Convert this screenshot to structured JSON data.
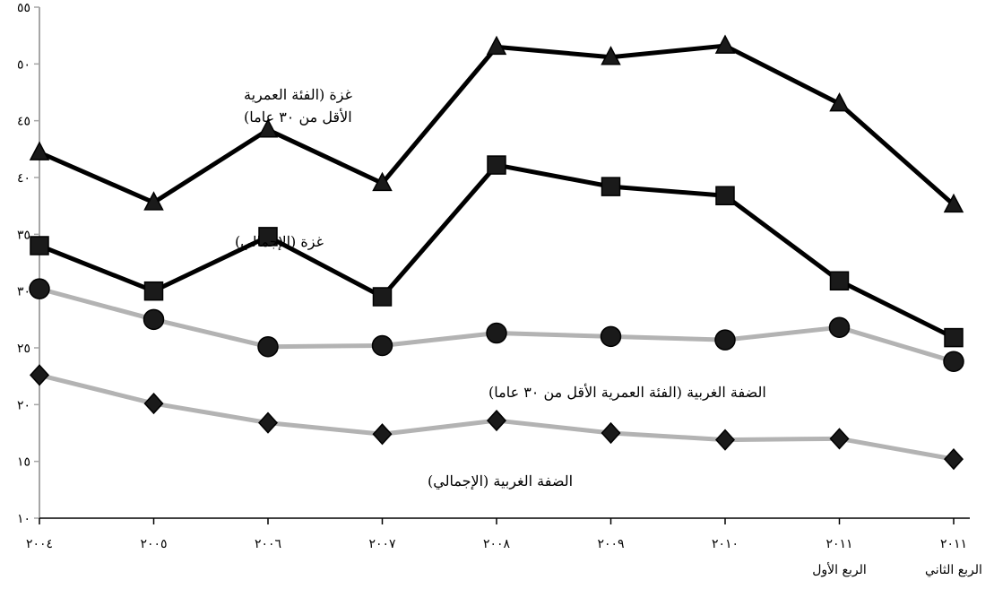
{
  "chart_data": {
    "type": "line",
    "categories": [
      "٢٠٠٤",
      "٢٠٠٥",
      "٢٠٠٦",
      "٢٠٠٧",
      "٢٠٠٨",
      "٢٠٠٩",
      "٢٠١٠",
      "٢٠١١",
      "٢٠١١"
    ],
    "category_sublabels": [
      "",
      "",
      "",
      "",
      "",
      "",
      "",
      "الربع الأول",
      "الربع الثاني"
    ],
    "ylim": [
      10,
      55
    ],
    "yticks": [
      10,
      15,
      20,
      25,
      30,
      35,
      40,
      45,
      50,
      55
    ],
    "ytick_labels": [
      "١٠",
      "١٥",
      "٢٠",
      "٢٥",
      "٣٠",
      "٣٥",
      "٤٠",
      "٤٥",
      "٥٠",
      "٥٥"
    ],
    "grid": false,
    "series": [
      {
        "name": "غزة (الفئة العمرية الأقل من ٣٠ عاما)",
        "name_lines": [
          "غزة (الفئة العمرية",
          "الأقل من ٣٠ عاما)"
        ],
        "marker": "triangle",
        "color": "#000000",
        "values": [
          42.2,
          37.8,
          44.2,
          39.5,
          51.5,
          50.6,
          51.6,
          46.5,
          37.6
        ]
      },
      {
        "name": "غزة (الإجمالي)",
        "name_lines": [
          "غزة (الإجمالي)"
        ],
        "marker": "square",
        "color": "#000000",
        "values": [
          34.0,
          30.0,
          34.8,
          29.5,
          41.1,
          39.2,
          38.4,
          30.9,
          25.9
        ]
      },
      {
        "name": "الضفة الغربية (الفئة العمرية الأقل من ٣٠ عاما)",
        "name_lines": [
          "الضفة الغربية (الفئة العمرية الأقل من ٣٠ عاما)"
        ],
        "marker": "circle",
        "color": "#b3b3b3",
        "values": [
          30.2,
          27.5,
          25.1,
          25.2,
          26.3,
          26.0,
          25.7,
          26.8,
          23.8
        ]
      },
      {
        "name": "الضفة الغربية (الإجمالي)",
        "name_lines": [
          "الضفة الغربية (الإجمالي)"
        ],
        "marker": "diamond",
        "color": "#b3b3b3",
        "values": [
          22.6,
          20.1,
          18.4,
          17.4,
          18.6,
          17.5,
          16.9,
          17.0,
          15.2
        ]
      }
    ]
  }
}
